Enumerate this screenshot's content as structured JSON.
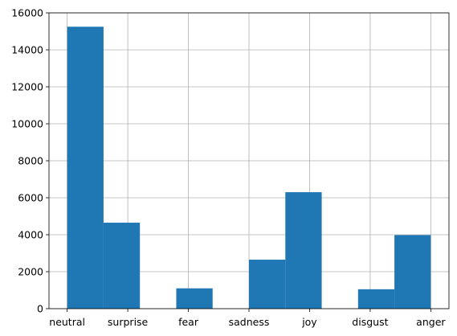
{
  "chart_data": {
    "type": "bar",
    "categories": [
      "neutral",
      "surprise",
      "fear",
      "sadness",
      "joy",
      "disgust",
      "anger"
    ],
    "x_tick_labels": [
      "neutral",
      "surprise",
      "fear",
      "sadness",
      "joy",
      "disgust",
      "anger"
    ],
    "bins": [
      {
        "label": "neutral",
        "value": 15250
      },
      {
        "label": "surprise",
        "value": 4650
      },
      {
        "label": "",
        "value": 0
      },
      {
        "label": "fear",
        "value": 1100
      },
      {
        "label": "",
        "value": 0
      },
      {
        "label": "sadness",
        "value": 2650
      },
      {
        "label": "joy",
        "value": 6300
      },
      {
        "label": "",
        "value": 0
      },
      {
        "label": "disgust",
        "value": 1050
      },
      {
        "label": "anger",
        "value": 3980
      }
    ],
    "ylim": [
      0,
      16000
    ],
    "y_ticks": [
      "0",
      "2000",
      "4000",
      "6000",
      "8000",
      "10000",
      "12000",
      "14000",
      "16000"
    ],
    "grid": true,
    "colors": {
      "bar": "#1f77b4",
      "grid": "#b0b0b0",
      "axis": "#000000"
    }
  }
}
